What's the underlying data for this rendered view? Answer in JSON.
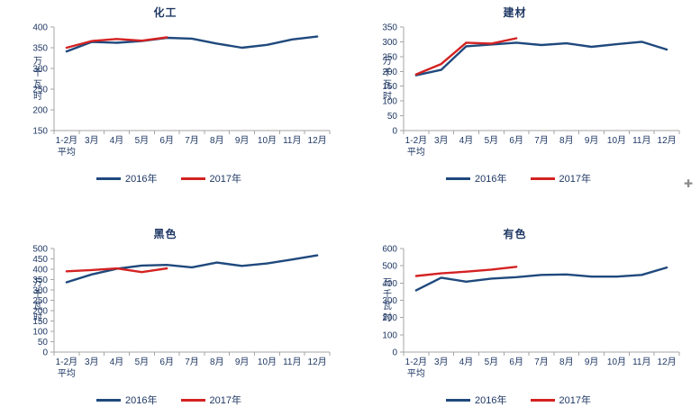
{
  "colors": {
    "axis": "#A6A6A6",
    "text": "#1F3864",
    "series_2016": "#1F497D",
    "series_2017": "#D42222",
    "cursor": "#8c8c8c"
  },
  "artifacts": {
    "cursor_glyph": "✚"
  },
  "chart_data": [
    {
      "type": "line",
      "title": "化工",
      "ylabel": "万千瓦时",
      "ylim": [
        150,
        400
      ],
      "ystep": 50,
      "grid": false,
      "legend_position": "bottom",
      "categories": [
        [
          "1-2月",
          "平均"
        ],
        [
          "3月"
        ],
        [
          "4月"
        ],
        [
          "5月"
        ],
        [
          "6月"
        ],
        [
          "7月"
        ],
        [
          "8月"
        ],
        [
          "9月"
        ],
        [
          "10月"
        ],
        [
          "11月"
        ],
        [
          "12月"
        ]
      ],
      "series": [
        {
          "name": "2016年",
          "color": "#1F497D",
          "values": [
            341,
            364,
            362,
            366,
            374,
            372,
            360,
            350,
            357,
            370,
            377
          ]
        },
        {
          "name": "2017年",
          "color": "#D42222",
          "values": [
            350,
            366,
            371,
            367,
            375
          ]
        }
      ]
    },
    {
      "type": "line",
      "title": "建材",
      "ylabel": "万千瓦时",
      "ylim": [
        0,
        350
      ],
      "ystep": 50,
      "grid": false,
      "legend_position": "bottom",
      "categories": [
        [
          "1-2月",
          "平均"
        ],
        [
          "3月"
        ],
        [
          "4月"
        ],
        [
          "5月"
        ],
        [
          "6月"
        ],
        [
          "7月"
        ],
        [
          "8月"
        ],
        [
          "9月"
        ],
        [
          "10月"
        ],
        [
          "11月"
        ],
        [
          "12月"
        ]
      ],
      "series": [
        {
          "name": "2016年",
          "color": "#1F497D",
          "values": [
            187,
            205,
            285,
            291,
            297,
            289,
            295,
            283,
            292,
            300,
            274
          ]
        },
        {
          "name": "2017年",
          "color": "#D42222",
          "values": [
            190,
            225,
            297,
            294,
            312
          ]
        }
      ]
    },
    {
      "type": "line",
      "title": "黑色",
      "ylabel": "万千瓦时",
      "ylim": [
        0,
        500
      ],
      "ystep": 50,
      "grid": false,
      "legend_position": "bottom",
      "categories": [
        [
          "1-2月",
          "平均"
        ],
        [
          "3月"
        ],
        [
          "4月"
        ],
        [
          "5月"
        ],
        [
          "6月"
        ],
        [
          "7月"
        ],
        [
          "8月"
        ],
        [
          "9月"
        ],
        [
          "10月"
        ],
        [
          "11月"
        ],
        [
          "12月"
        ]
      ],
      "series": [
        {
          "name": "2016年",
          "color": "#1F497D",
          "values": [
            337,
            375,
            402,
            418,
            421,
            409,
            432,
            416,
            428,
            447,
            467
          ]
        },
        {
          "name": "2017年",
          "color": "#D42222",
          "values": [
            390,
            396,
            404,
            386,
            404
          ]
        }
      ]
    },
    {
      "type": "line",
      "title": "有色",
      "ylabel": "万千瓦时",
      "ylim": [
        0,
        600
      ],
      "ystep": 100,
      "grid": false,
      "legend_position": "bottom",
      "categories": [
        [
          "1-2月",
          "平均"
        ],
        [
          "3月"
        ],
        [
          "4月"
        ],
        [
          "5月"
        ],
        [
          "6月"
        ],
        [
          "7月"
        ],
        [
          "8月"
        ],
        [
          "9月"
        ],
        [
          "10月"
        ],
        [
          "11月"
        ],
        [
          "12月"
        ]
      ],
      "series": [
        {
          "name": "2016年",
          "color": "#1F497D",
          "values": [
            358,
            431,
            408,
            426,
            434,
            447,
            450,
            437,
            437,
            447,
            490
          ]
        },
        {
          "name": "2017年",
          "color": "#D42222",
          "values": [
            441,
            456,
            466,
            478,
            494
          ]
        }
      ]
    }
  ]
}
